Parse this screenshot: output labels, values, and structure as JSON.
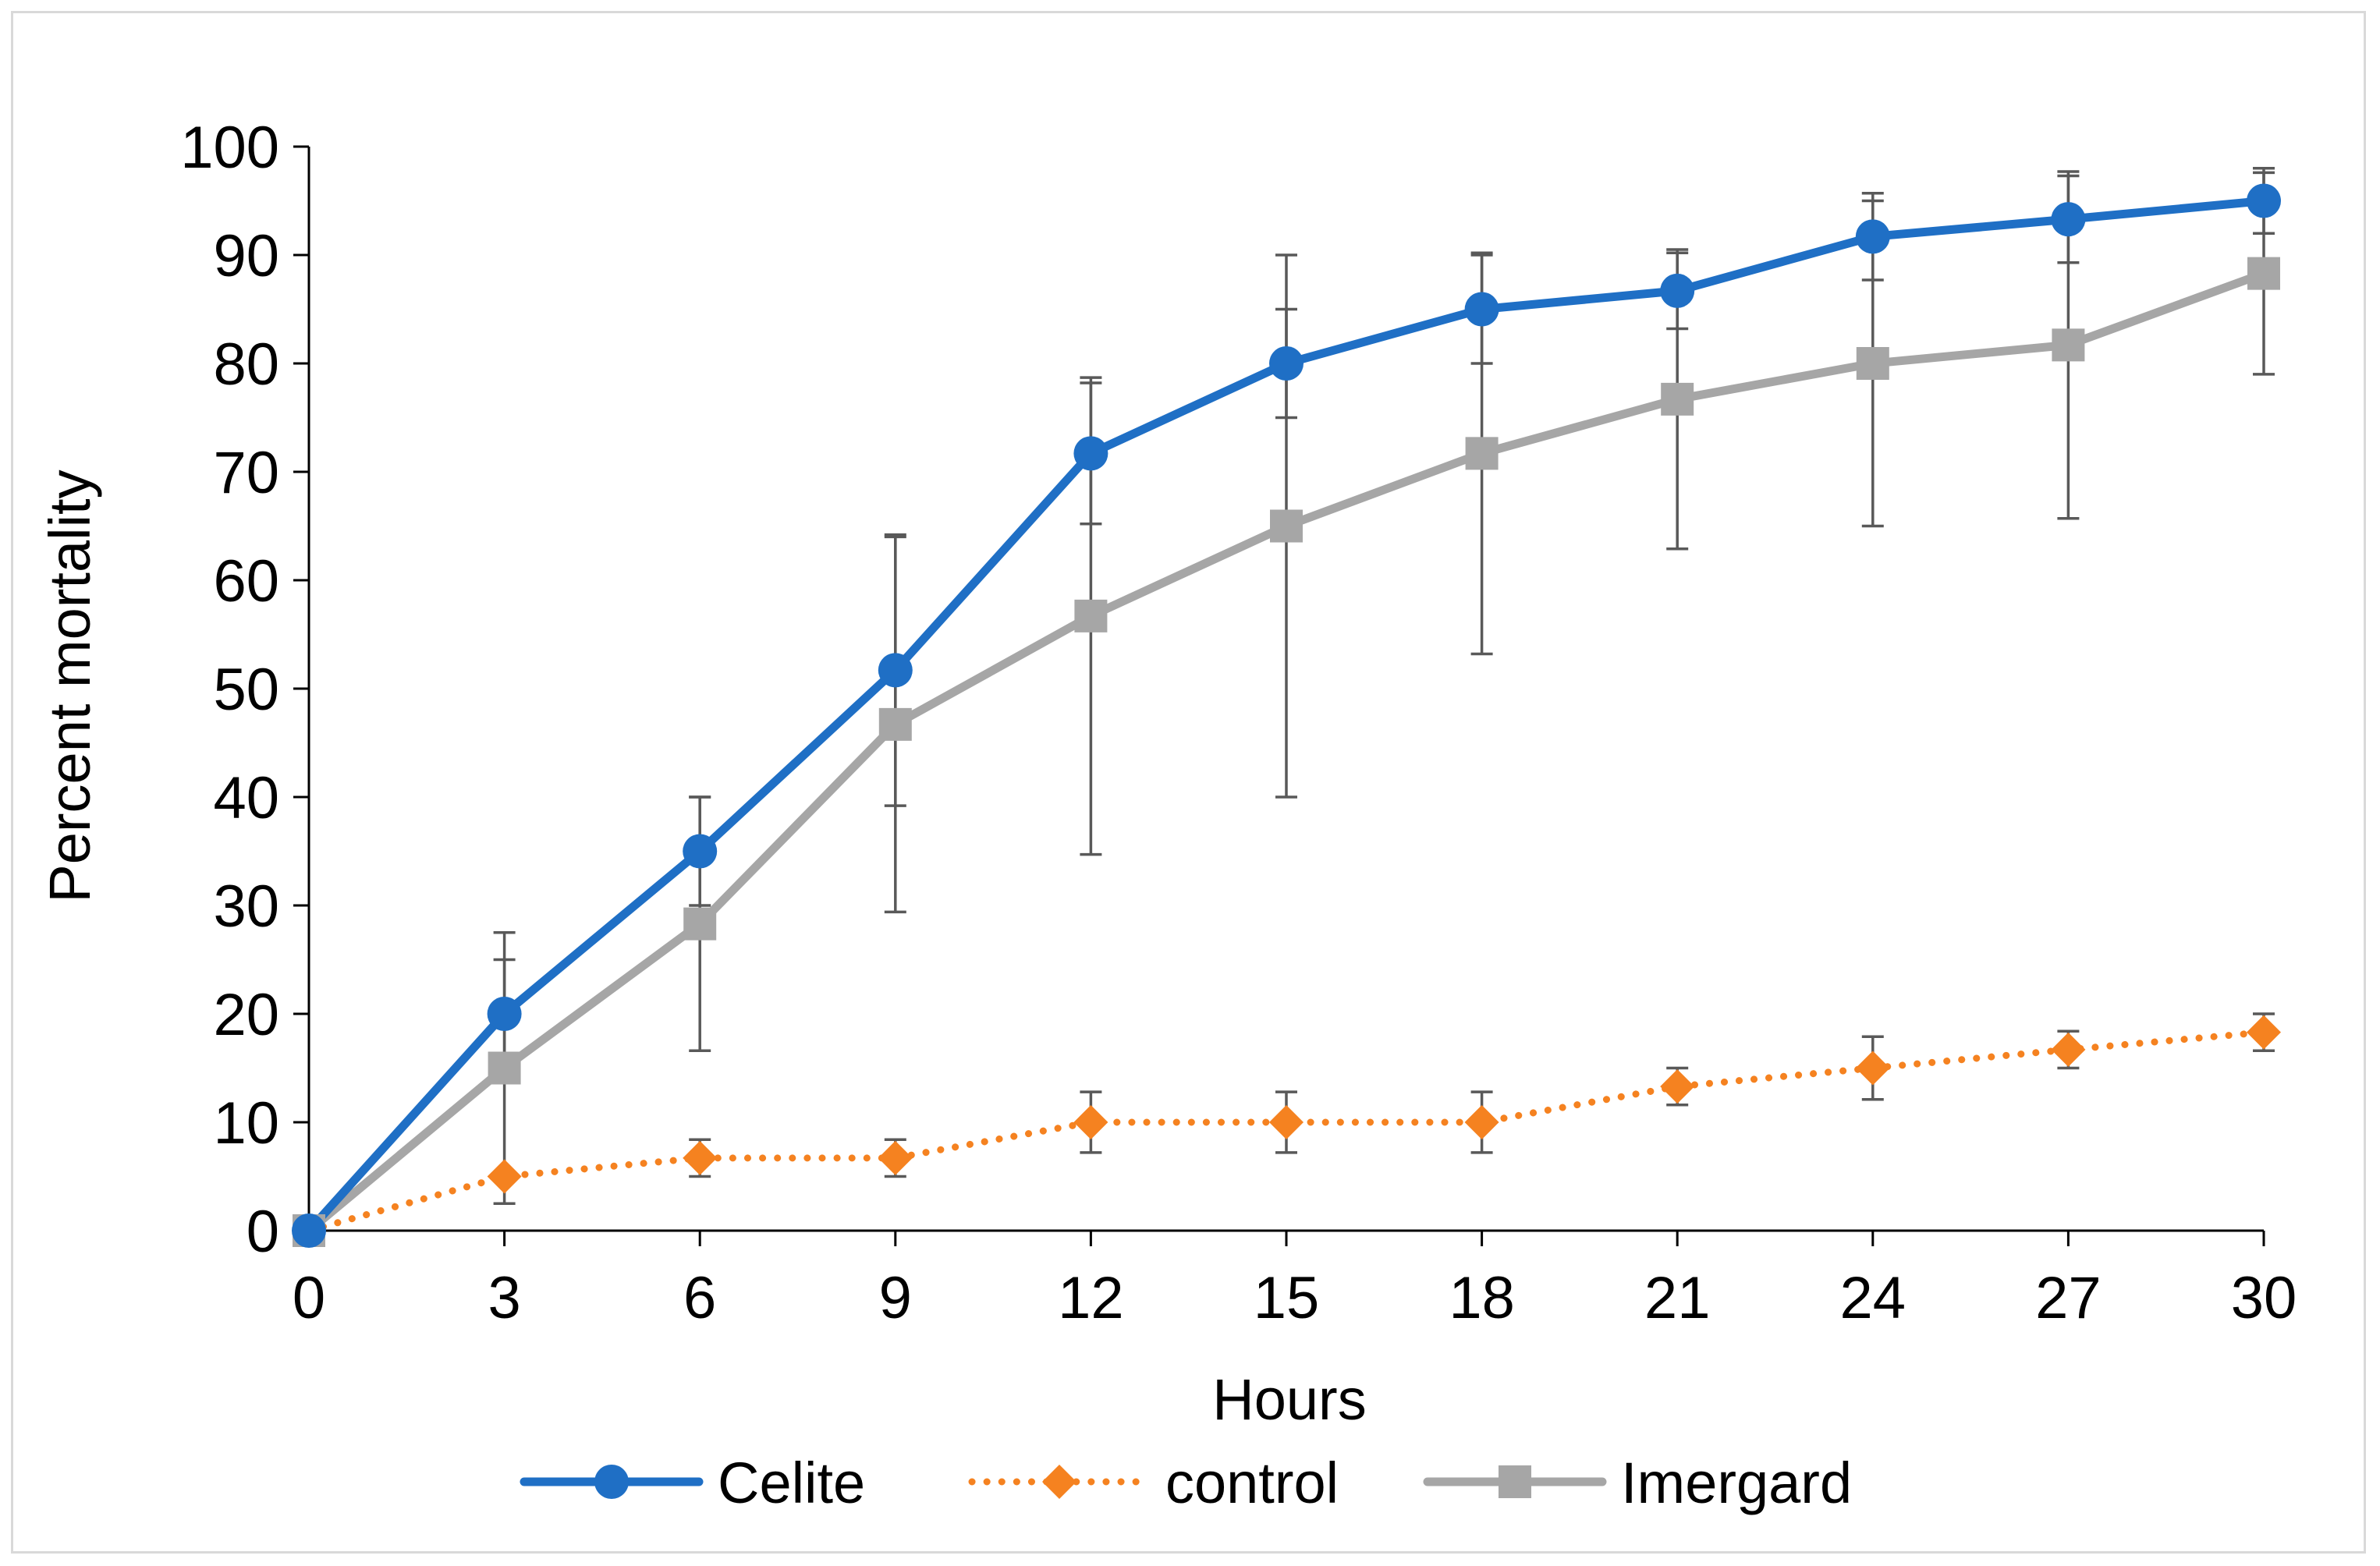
{
  "chart_data": {
    "type": "line",
    "title": "",
    "xlabel": "Hours",
    "ylabel": "Percent mortality",
    "x": [
      0,
      3,
      6,
      9,
      12,
      15,
      18,
      21,
      24,
      27,
      30
    ],
    "xlim": [
      0,
      30
    ],
    "ylim": [
      0,
      100
    ],
    "x_ticks": [
      "0",
      "3",
      "6",
      "9",
      "12",
      "15",
      "18",
      "21",
      "24",
      "27",
      "30"
    ],
    "y_ticks": [
      "0",
      "10",
      "20",
      "30",
      "40",
      "50",
      "60",
      "70",
      "80",
      "90",
      "100"
    ],
    "grid": false,
    "legend_position": "bottom",
    "series": [
      {
        "name": "Celite",
        "color": "#1f6fc5",
        "line_style": "solid",
        "marker": "circle",
        "values": [
          0,
          20,
          35,
          51.7,
          71.7,
          80,
          85,
          86.7,
          91.7,
          93.3,
          95
        ],
        "error": [
          0,
          5,
          5,
          12.5,
          6.5,
          5,
          5,
          3.5,
          4,
          4,
          3
        ]
      },
      {
        "name": "control",
        "color": "#f58220",
        "line_style": "dotted",
        "marker": "diamond",
        "values": [
          0,
          5,
          6.7,
          6.7,
          10,
          10,
          10,
          13.3,
          15,
          16.7,
          18.3
        ],
        "error": [
          0,
          0,
          1.7,
          1.7,
          2.8,
          2.8,
          2.8,
          1.7,
          2.9,
          1.7,
          1.7
        ]
      },
      {
        "name": "Imergard",
        "color": "#a6a6a6",
        "line_style": "solid",
        "marker": "square",
        "values": [
          0,
          15,
          28.3,
          46.7,
          56.7,
          65,
          71.7,
          76.7,
          80,
          81.7,
          88.3
        ],
        "error": [
          0,
          12.5,
          11.7,
          17.3,
          22,
          25,
          18.5,
          13.8,
          15,
          16,
          9.3
        ]
      }
    ]
  }
}
